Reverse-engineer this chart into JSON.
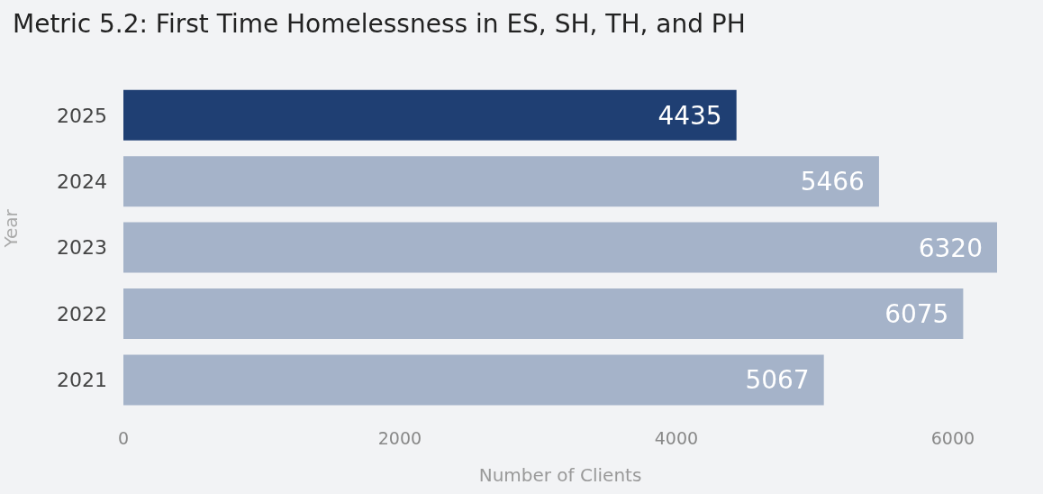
{
  "chart_data": {
    "type": "bar",
    "orientation": "horizontal",
    "title": "Metric 5.2: First Time Homelessness in ES, SH, TH, and PH",
    "xlabel": "Number of Clients",
    "ylabel": "Year",
    "categories": [
      "2025",
      "2024",
      "2023",
      "2022",
      "2021"
    ],
    "values": [
      4435,
      5466,
      6320,
      6075,
      5067
    ],
    "colors": [
      "#1f3f73",
      "#a5b3c9",
      "#a5b3c9",
      "#a5b3c9",
      "#a5b3c9"
    ],
    "xlim": [
      0,
      6320
    ],
    "xticks": [
      0,
      2000,
      4000,
      6000
    ],
    "data_labels": true
  }
}
